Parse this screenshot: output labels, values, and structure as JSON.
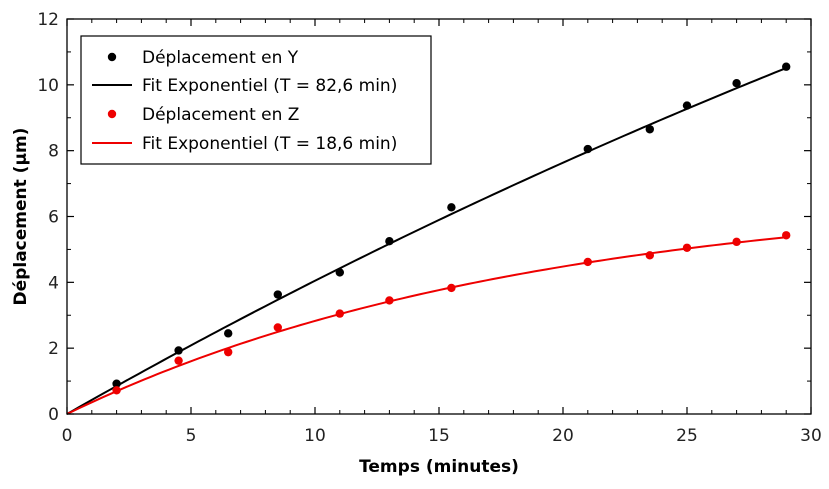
{
  "chart_data": {
    "type": "scatter",
    "xlabel": "Temps (minutes)",
    "ylabel": "Déplacement (µm)",
    "xlim": [
      0,
      30
    ],
    "ylim": [
      0,
      12
    ],
    "xticks": [
      0,
      5,
      10,
      15,
      20,
      25,
      30
    ],
    "yticks": [
      0,
      2,
      4,
      6,
      8,
      10,
      12
    ],
    "grid": false,
    "legend_position": "top-left",
    "series": [
      {
        "name": "Déplacement en Y",
        "kind": "scatter",
        "color": "#000000",
        "x": [
          2,
          4.5,
          6.5,
          8.5,
          11,
          13,
          15.5,
          21,
          23.5,
          25,
          27,
          29
        ],
        "y": [
          0.92,
          1.93,
          2.45,
          3.63,
          4.3,
          5.25,
          6.28,
          8.05,
          8.65,
          9.37,
          10.05,
          10.55
        ]
      },
      {
        "name": "Fit Exponentiel (T = 82,6 min)",
        "kind": "line",
        "color": "#000000",
        "amplitude": 35.5,
        "tau": 82.6
      },
      {
        "name": "Déplacement en Z",
        "kind": "scatter",
        "color": "#ee0000",
        "x": [
          2,
          4.5,
          6.5,
          8.5,
          11,
          13,
          15.5,
          21,
          23.5,
          25,
          27,
          29
        ],
        "y": [
          0.72,
          1.62,
          1.88,
          2.63,
          3.05,
          3.45,
          3.83,
          4.62,
          4.82,
          5.05,
          5.23,
          5.43
        ]
      },
      {
        "name": "Fit Exponentiel (T = 18,6 min)",
        "kind": "line",
        "color": "#ee0000",
        "amplitude": 6.8,
        "tau": 18.6
      }
    ]
  }
}
